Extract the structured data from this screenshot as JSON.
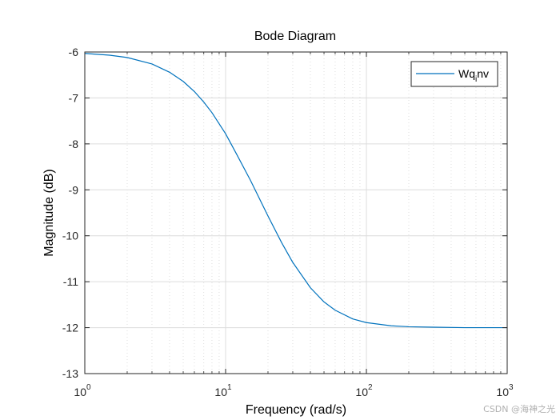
{
  "chart_data": {
    "type": "line",
    "title": "Bode Diagram",
    "xlabel": "Frequency  (rad/s)",
    "ylabel": "Magnitude (dB)",
    "xscale": "log",
    "xlim": [
      1,
      1000
    ],
    "ylim": [
      -13,
      -6
    ],
    "x_ticks": [
      {
        "base": "10",
        "exp": "0"
      },
      {
        "base": "10",
        "exp": "1"
      },
      {
        "base": "10",
        "exp": "2"
      },
      {
        "base": "10",
        "exp": "3"
      }
    ],
    "y_ticks": [
      "-6",
      "-7",
      "-8",
      "-9",
      "-10",
      "-11",
      "-12",
      "-13"
    ],
    "grid": true,
    "legend": {
      "location": "top-right",
      "entries": [
        {
          "base": "Wq",
          "sub": "i",
          "rest": "nv"
        }
      ]
    },
    "series": [
      {
        "name": "Wq_inv",
        "color": "#0072BD",
        "x": [
          1,
          1.5,
          2,
          3,
          4,
          5,
          6,
          7,
          8,
          10,
          12,
          15,
          20,
          25,
          30,
          40,
          50,
          60,
          80,
          100,
          150,
          200,
          300,
          500,
          700,
          1000
        ],
        "y": [
          -6.03,
          -6.07,
          -6.12,
          -6.26,
          -6.44,
          -6.64,
          -6.86,
          -7.09,
          -7.32,
          -7.78,
          -8.23,
          -8.79,
          -9.57,
          -10.15,
          -10.58,
          -11.13,
          -11.44,
          -11.62,
          -11.81,
          -11.89,
          -11.96,
          -11.98,
          -11.99,
          -12.0,
          -12.0,
          -12.0
        ]
      }
    ]
  },
  "watermark": "CSDN @海神之光"
}
